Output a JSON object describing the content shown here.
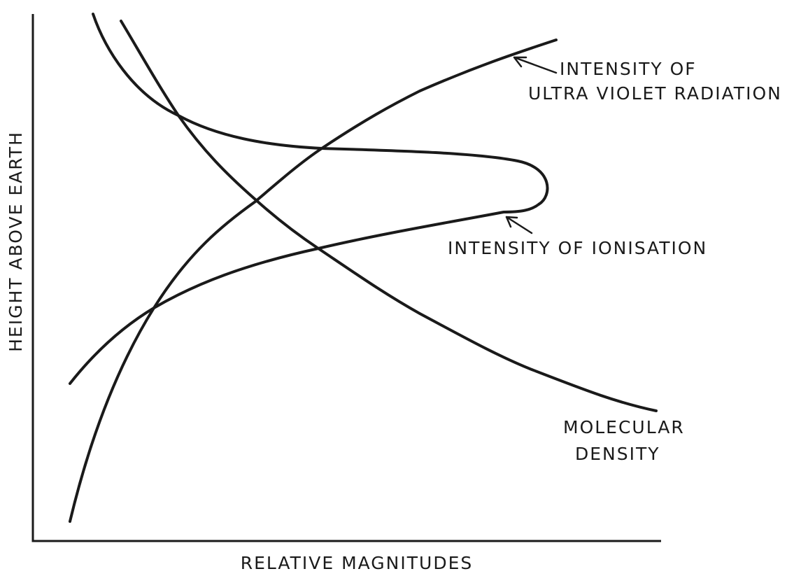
{
  "x_label": "RELATIVE MAGNITUDES",
  "y_label": "HEIGHT ABOVE EARTH",
  "labels": {
    "ultraviolet": [
      "INTENSITY OF",
      "ULTRA VIOLET RADIATION"
    ],
    "ionisation": "INTENSITY OF IONISATION",
    "molecular_density": [
      "MOLECULAR",
      "DENSITY"
    ]
  }
}
